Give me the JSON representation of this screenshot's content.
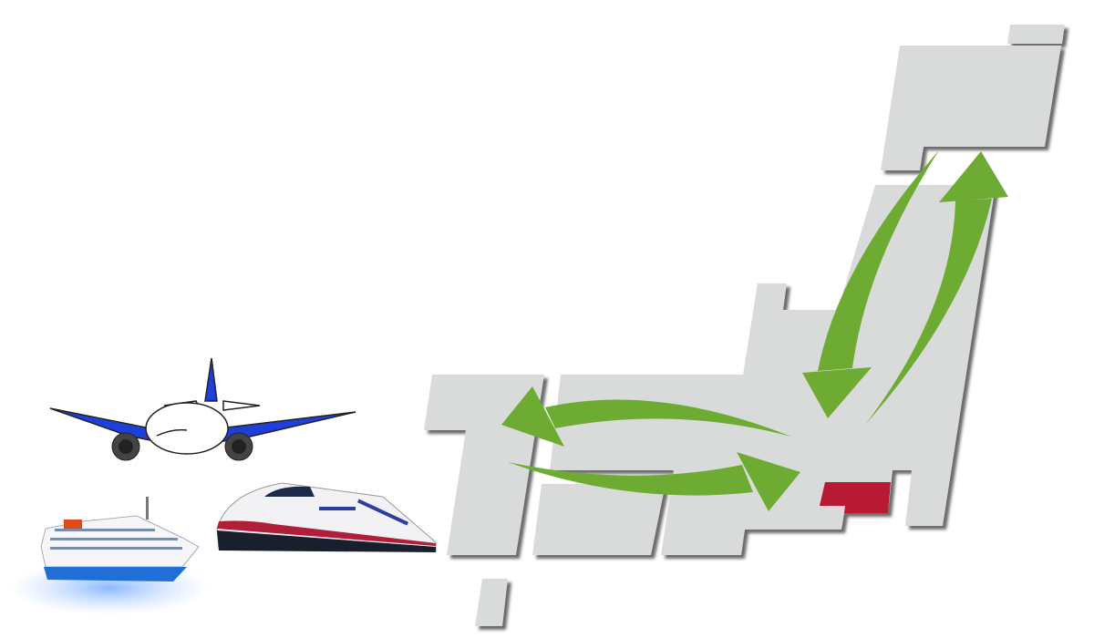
{
  "colors": {
    "land": "#d9dbdb",
    "highlight_region": "#b81a33",
    "arrow": "#6eab32",
    "plane_wing": "#1f3fdb",
    "ship_hull": "#1f6fd6",
    "train_stripe": "#2a3f9e"
  },
  "map": {
    "regions": [
      "hokkaido-islet",
      "hokkaido",
      "honshu",
      "shikoku",
      "kyushu",
      "okinawa"
    ],
    "highlighted_region": "tokyo"
  },
  "arrows": [
    "north-to-hub",
    "hub-to-north",
    "hub-to-west",
    "west-to-hub"
  ],
  "icons": [
    "airplane-icon",
    "cruise-ship-icon",
    "bullet-train-icon"
  ]
}
